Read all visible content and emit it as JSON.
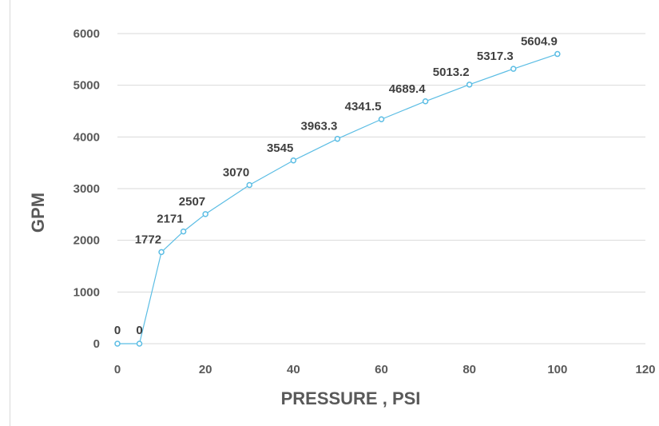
{
  "chart_data": {
    "type": "line",
    "title": "",
    "xlabel": "PRESSURE , PSI",
    "ylabel": "GPM",
    "xlim": [
      0,
      120
    ],
    "ylim": [
      0,
      6000
    ],
    "xticks": [
      0,
      20,
      40,
      60,
      80,
      100,
      120
    ],
    "yticks": [
      0,
      1000,
      2000,
      3000,
      4000,
      5000,
      6000
    ],
    "grid": "horizontal",
    "legend": "none",
    "series_color": "#5bbde4",
    "series": [
      {
        "x": [
          0,
          5,
          10,
          15,
          20,
          30,
          40,
          50,
          60,
          70,
          80,
          90,
          100
        ],
        "values": [
          0,
          0,
          1772,
          2171,
          2507,
          3070,
          3545,
          3963.3,
          4341.5,
          4689.4,
          5013.2,
          5317.3,
          5604.9
        ],
        "labels": [
          "0",
          "0",
          "1772",
          "2171",
          "2507",
          "3070",
          "3545",
          "3963.3",
          "4341.5",
          "4689.4",
          "5013.2",
          "5317.3",
          "5604.9"
        ]
      }
    ]
  }
}
